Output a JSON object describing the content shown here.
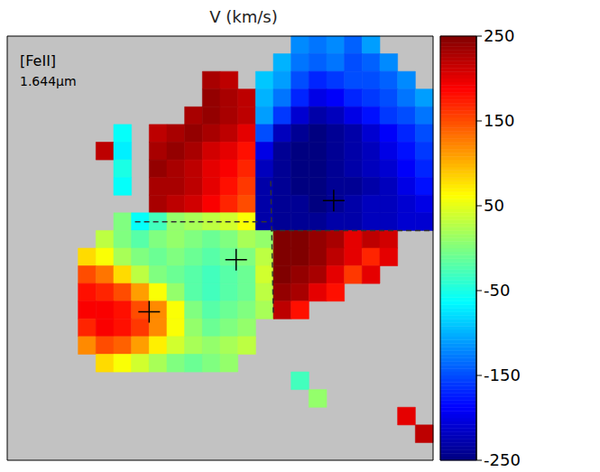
{
  "chart_data": {
    "type": "heatmap",
    "title": "V (km/s)",
    "annotations": [
      "[FeII]",
      "1.644μm"
    ],
    "tick_labels": false,
    "colorbar": {
      "range": [
        -250,
        250
      ],
      "ticks": [
        -250,
        -150,
        -50,
        50,
        150,
        250
      ]
    },
    "crosses": [
      {
        "x": 12.9,
        "y": 12.65
      },
      {
        "x": 8.0,
        "y": 15.6
      },
      {
        "x": 18.4,
        "y": 9.3
      }
    ],
    "dashed_lines": [
      [
        7.2,
        10.5,
        14.85,
        10.5
      ],
      [
        14.85,
        8.2,
        15.0,
        15.8
      ],
      [
        14.85,
        11.0,
        23.9,
        11.0
      ]
    ],
    "cells": [
      [
        null,
        null,
        null,
        null,
        null,
        null,
        null,
        null,
        null,
        null,
        null,
        null,
        null,
        null,
        null,
        null,
        -120,
        -130,
        -120,
        -140,
        -110,
        null,
        null,
        null
      ],
      [
        null,
        null,
        null,
        null,
        null,
        null,
        null,
        null,
        null,
        null,
        null,
        null,
        null,
        null,
        null,
        -100,
        -130,
        -140,
        -130,
        -150,
        -140,
        -120,
        null,
        null
      ],
      [
        null,
        null,
        null,
        null,
        null,
        null,
        null,
        null,
        null,
        null,
        null,
        230,
        220,
        null,
        -90,
        -110,
        -150,
        -170,
        -160,
        -150,
        -150,
        -140,
        -120,
        null
      ],
      [
        null,
        null,
        null,
        null,
        null,
        null,
        null,
        null,
        null,
        null,
        null,
        240,
        230,
        220,
        -100,
        -130,
        -170,
        -200,
        -190,
        -170,
        -160,
        -150,
        -130,
        -110
      ],
      [
        null,
        null,
        null,
        null,
        null,
        null,
        null,
        null,
        null,
        null,
        230,
        240,
        230,
        220,
        -110,
        -160,
        -210,
        -230,
        -220,
        -200,
        -180,
        -160,
        -150,
        -130
      ],
      [
        null,
        null,
        null,
        null,
        null,
        null,
        -60,
        null,
        220,
        230,
        240,
        230,
        220,
        200,
        -150,
        -220,
        -240,
        -250,
        -240,
        -230,
        -210,
        -190,
        -170,
        -150
      ],
      [
        null,
        null,
        null,
        null,
        null,
        220,
        -70,
        null,
        230,
        240,
        230,
        210,
        200,
        180,
        -200,
        -240,
        -250,
        -250,
        -240,
        -230,
        -220,
        -200,
        -180,
        -160
      ],
      [
        null,
        null,
        null,
        null,
        null,
        null,
        -50,
        null,
        240,
        230,
        220,
        200,
        190,
        170,
        -220,
        -240,
        -250,
        -250,
        -240,
        -230,
        -220,
        -210,
        -190,
        -170
      ],
      [
        null,
        null,
        null,
        null,
        null,
        null,
        -60,
        null,
        230,
        230,
        220,
        200,
        180,
        160,
        -230,
        -240,
        -250,
        -250,
        -240,
        -240,
        -230,
        -220,
        -200,
        -180
      ],
      [
        null,
        null,
        null,
        null,
        null,
        null,
        null,
        null,
        230,
        220,
        210,
        190,
        170,
        150,
        -230,
        -240,
        -240,
        -250,
        -240,
        -230,
        -220,
        -220,
        -210,
        -200
      ],
      [
        null,
        null,
        null,
        null,
        null,
        null,
        0,
        -60,
        -30,
        10,
        20,
        30,
        40,
        60,
        -230,
        -240,
        -240,
        -240,
        -230,
        -230,
        -220,
        -220,
        -210,
        -210
      ],
      [
        null,
        null,
        null,
        null,
        null,
        30,
        0,
        -20,
        0,
        10,
        0,
        -10,
        0,
        20,
        10,
        250,
        250,
        240,
        230,
        200,
        220,
        210,
        null,
        null
      ],
      [
        null,
        null,
        null,
        null,
        80,
        60,
        20,
        0,
        -10,
        0,
        -10,
        -20,
        -10,
        0,
        30,
        250,
        250,
        240,
        220,
        200,
        170,
        200,
        null,
        null
      ],
      [
        null,
        null,
        null,
        null,
        150,
        130,
        80,
        30,
        0,
        -10,
        -20,
        -30,
        -20,
        -10,
        40,
        250,
        240,
        230,
        200,
        160,
        200,
        null,
        null,
        null
      ],
      [
        null,
        null,
        null,
        null,
        180,
        170,
        150,
        110,
        60,
        10,
        -20,
        -30,
        -20,
        -10,
        30,
        240,
        230,
        200,
        180,
        null,
        null,
        null,
        null,
        null
      ],
      [
        null,
        null,
        null,
        null,
        190,
        190,
        180,
        150,
        120,
        60,
        0,
        -20,
        -10,
        0,
        20,
        220,
        180,
        null,
        null,
        null,
        null,
        null,
        null,
        null
      ],
      [
        null,
        null,
        null,
        null,
        170,
        190,
        180,
        160,
        120,
        60,
        10,
        -10,
        0,
        10,
        null,
        null,
        null,
        null,
        null,
        null,
        null,
        null,
        null,
        null
      ],
      [
        null,
        null,
        null,
        null,
        120,
        150,
        140,
        110,
        70,
        40,
        20,
        10,
        20,
        30,
        null,
        null,
        null,
        null,
        null,
        null,
        null,
        null,
        null,
        null
      ],
      [
        null,
        null,
        null,
        null,
        null,
        80,
        60,
        40,
        20,
        0,
        -10,
        0,
        10,
        null,
        null,
        null,
        null,
        null,
        null,
        null,
        null,
        null,
        null,
        null
      ],
      [
        null,
        null,
        null,
        null,
        null,
        null,
        null,
        null,
        null,
        null,
        null,
        null,
        null,
        null,
        null,
        null,
        -30,
        null,
        null,
        null,
        null,
        null,
        null,
        null
      ],
      [
        null,
        null,
        null,
        null,
        null,
        null,
        null,
        null,
        null,
        null,
        null,
        null,
        null,
        null,
        null,
        null,
        null,
        10,
        null,
        null,
        null,
        null,
        null,
        null
      ],
      [
        null,
        null,
        null,
        null,
        null,
        null,
        null,
        null,
        null,
        null,
        null,
        null,
        null,
        null,
        null,
        null,
        null,
        null,
        null,
        null,
        null,
        null,
        200,
        null
      ],
      [
        null,
        null,
        null,
        null,
        null,
        null,
        null,
        null,
        null,
        null,
        null,
        null,
        null,
        null,
        null,
        null,
        null,
        null,
        null,
        null,
        null,
        null,
        null,
        220
      ],
      [
        null,
        null,
        null,
        null,
        null,
        null,
        null,
        null,
        null,
        null,
        null,
        null,
        null,
        null,
        null,
        null,
        null,
        null,
        null,
        null,
        null,
        null,
        null,
        null
      ]
    ]
  }
}
